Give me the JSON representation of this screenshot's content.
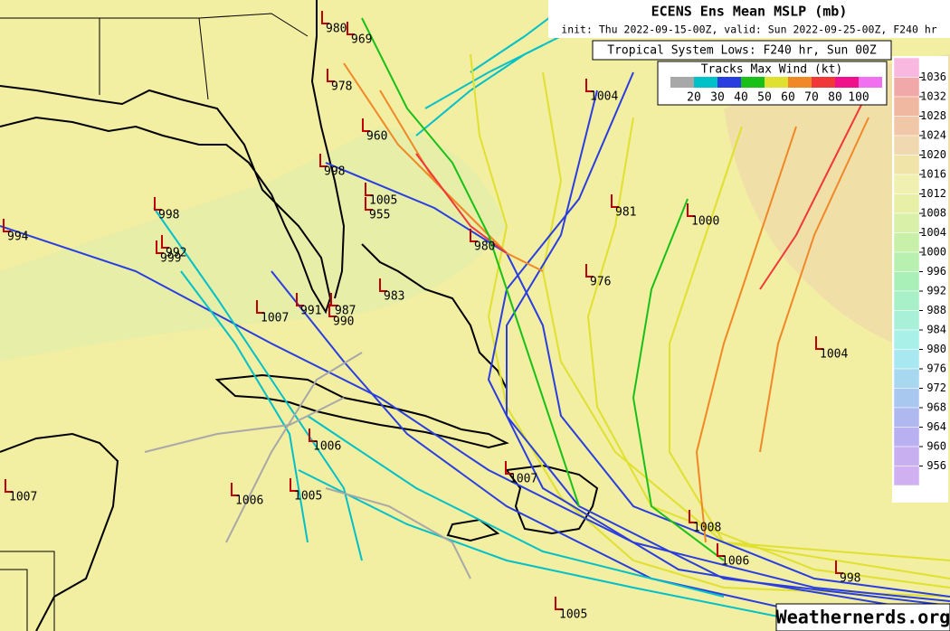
{
  "header": {
    "title": "ECENS Ens Mean MSLP (mb)",
    "subtitle": "init: Thu 2022-09-15-00Z, valid: Sun 2022-09-25-00Z, F240 hr",
    "lows_title": "Tropical System Lows: F240 hr, Sun 00Z"
  },
  "wind_legend": {
    "title": "Tracks Max Wind (kt)",
    "labels": [
      20,
      30,
      40,
      50,
      60,
      70,
      80,
      100
    ],
    "colors": [
      "#a8a8a8",
      "#00c0c8",
      "#2a3ee0",
      "#18c018",
      "#e0e030",
      "#f08828",
      "#f03838",
      "#f0108c",
      "#f070f0"
    ]
  },
  "colorbar": {
    "levels": [
      1036,
      1032,
      1028,
      1024,
      1020,
      1016,
      1012,
      1008,
      1004,
      1000,
      996,
      992,
      988,
      984,
      980,
      976,
      972,
      968,
      964,
      960,
      956
    ],
    "colors": [
      "#f8b8e0",
      "#f0a8a8",
      "#f0b8a0",
      "#f0c8a8",
      "#f0d8b0",
      "#f0e4a8",
      "#f0f0b0",
      "#e8f0a8",
      "#d8f0a8",
      "#c8f0a8",
      "#b8f0b0",
      "#a8f0b8",
      "#a8f0c8",
      "#a8f0d8",
      "#a8f0e8",
      "#a8e8f0",
      "#a8d8f0",
      "#a8c8f0",
      "#b0b8f0",
      "#b8b0f0",
      "#c8b0f0",
      "#d0b0f0"
    ]
  },
  "lows": [
    980,
    969,
    978,
    960,
    998,
    1005,
    955,
    998,
    994,
    992,
    999,
    1007,
    991,
    987,
    990,
    983,
    980,
    1004,
    981,
    1000,
    976,
    1004,
    1006,
    1007,
    1007,
    1006,
    1005,
    1008,
    1006,
    998,
    1005
  ],
  "watermark": "Weathernerds.org"
}
